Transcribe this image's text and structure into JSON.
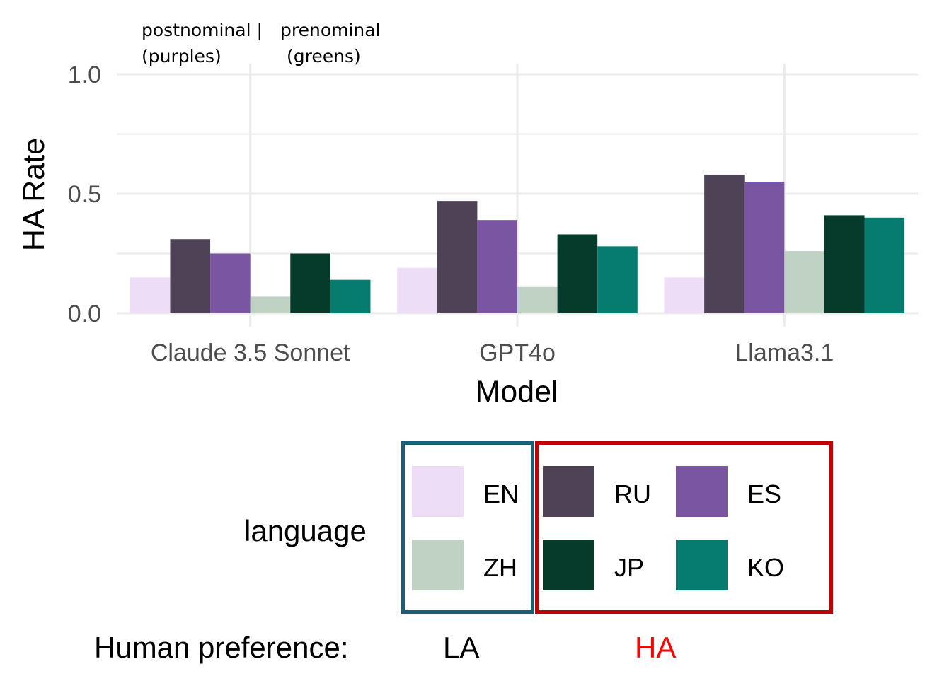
{
  "annotations": {
    "left_line1": "postnominal |",
    "left_line2": "(purples)",
    "right_line1": "prenominal",
    "right_line2": "(greens)"
  },
  "chart_data": {
    "type": "bar",
    "xlabel": "Model",
    "ylabel": "HA Rate",
    "ylim": [
      0,
      1.0
    ],
    "yticks": [
      "0.0",
      "0.5",
      "1.0"
    ],
    "grid": true,
    "categories": [
      "Claude 3.5 Sonnet",
      "GPT4o",
      "Llama3.1"
    ],
    "series": [
      {
        "name": "EN",
        "color": "#EEDDF7",
        "values": [
          0.15,
          0.19,
          0.15
        ]
      },
      {
        "name": "RU",
        "color": "#4E4356",
        "values": [
          0.31,
          0.47,
          0.58
        ]
      },
      {
        "name": "ES",
        "color": "#7A55A1",
        "values": [
          0.25,
          0.39,
          0.55
        ]
      },
      {
        "name": "ZH",
        "color": "#C0D2C4",
        "values": [
          0.07,
          0.11,
          0.26
        ]
      },
      {
        "name": "JP",
        "color": "#063A2B",
        "values": [
          0.25,
          0.33,
          0.41
        ]
      },
      {
        "name": "KO",
        "color": "#067C6F",
        "values": [
          0.14,
          0.28,
          0.4
        ]
      }
    ]
  },
  "legend": {
    "title": "language",
    "items": [
      {
        "label": "EN",
        "color": "#EEDDF7"
      },
      {
        "label": "ZH",
        "color": "#C0D2C4"
      },
      {
        "label": "RU",
        "color": "#4E4356"
      },
      {
        "label": "JP",
        "color": "#063A2B"
      },
      {
        "label": "ES",
        "color": "#7A55A1"
      },
      {
        "label": "KO",
        "color": "#067C6F"
      }
    ]
  },
  "preference": {
    "label": "Human preference:",
    "la_label": "LA",
    "ha_label": "HA",
    "la_color": "#1A5F7A",
    "ha_color": "#C00000",
    "ha_text_color": "#FF0000"
  }
}
